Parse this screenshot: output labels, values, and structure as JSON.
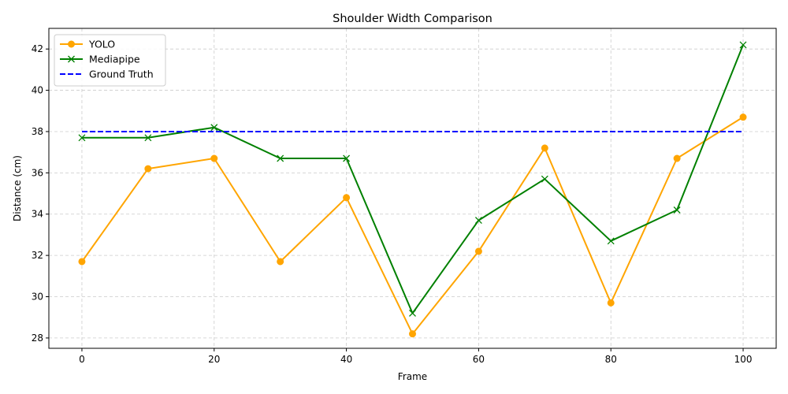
{
  "chart_data": {
    "type": "line",
    "title": "Shoulder Width Comparison",
    "xlabel": "Frame",
    "ylabel": "Distance (cm)",
    "xlim": [
      -5,
      105
    ],
    "ylim": [
      27.5,
      43
    ],
    "xticks": [
      0,
      20,
      40,
      60,
      80,
      100
    ],
    "yticks": [
      28,
      30,
      32,
      34,
      36,
      38,
      40,
      42
    ],
    "grid": true,
    "legend_position": "top-left",
    "x": [
      0,
      10,
      20,
      30,
      40,
      50,
      60,
      70,
      80,
      90,
      100
    ],
    "series": [
      {
        "name": "YOLO",
        "color": "#ffa500",
        "marker": "circle",
        "style": "solid",
        "values": [
          31.7,
          36.2,
          36.7,
          31.7,
          34.8,
          28.2,
          32.2,
          37.2,
          29.7,
          36.7,
          38.7
        ]
      },
      {
        "name": "Mediapipe",
        "color": "#008000",
        "marker": "x",
        "style": "solid",
        "values": [
          37.7,
          37.7,
          38.2,
          36.7,
          36.7,
          29.2,
          33.7,
          35.7,
          32.7,
          34.2,
          42.2
        ]
      },
      {
        "name": "Ground Truth",
        "color": "#0000ff",
        "marker": "none",
        "style": "dashed",
        "values": [
          38,
          38,
          38,
          38,
          38,
          38,
          38,
          38,
          38,
          38,
          38
        ]
      }
    ]
  }
}
